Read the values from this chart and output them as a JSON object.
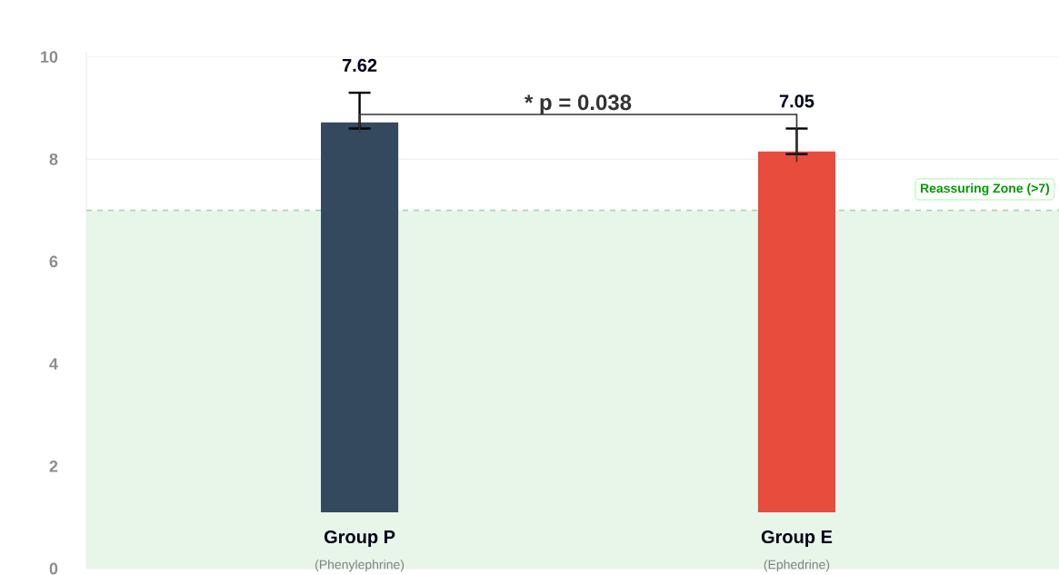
{
  "chart_data": {
    "type": "bar",
    "categories": [
      "Group P",
      "Group E"
    ],
    "values": [
      7.62,
      7.05
    ],
    "base": [
      1.1,
      1.1
    ],
    "colors": [
      "#34495e",
      "#e74c3c"
    ],
    "errors": [
      [
        8.6,
        9.3
      ],
      [
        8.1,
        8.6
      ]
    ],
    "data_labels": true,
    "ylim": [
      0,
      10.1
    ],
    "yticks": [
      0,
      2,
      4,
      6,
      8,
      10
    ],
    "grid": "y",
    "bands": [
      {
        "axis": "y",
        "from": 0,
        "to": 7,
        "color": "#e8f5e9",
        "label": "Reassuring Zone (>7)"
      }
    ],
    "ref_lines": [
      {
        "axis": "y",
        "value": 7,
        "color": "#a5d6a7",
        "line_style": "dashed"
      }
    ],
    "annotations": [
      "* p = 0.038",
      {
        "text": "(Phenylephrine)",
        "x": "Group P"
      },
      {
        "text": "(Ephedrine)",
        "x": "Group E"
      }
    ]
  }
}
